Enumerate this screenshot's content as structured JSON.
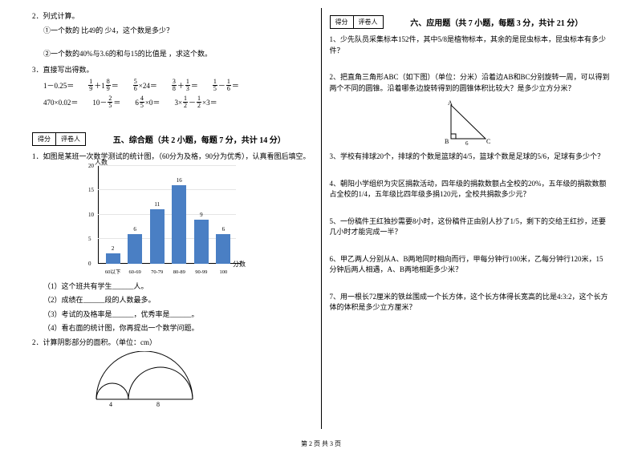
{
  "left": {
    "q2": {
      "title": "2．列式计算。",
      "a": "①一个数的 比49的 少4，这个数是多少？",
      "b": "②一个数的40%与3.6的和与15的比值是 ，求这个数。"
    },
    "q3": {
      "title": "3．直接写出得数。",
      "row1": {
        "e1_l": "1－0.25＝",
        "e2_pre": "",
        "e2_f1n": "1",
        "e2_f1d": "9",
        "e2_mid": "＋1",
        "e2_f2n": "8",
        "e2_f2d": "9",
        "e2_post": "＝",
        "e3_f1n": "5",
        "e3_f1d": "6",
        "e3_post": "×24＝",
        "e4_f1n": "3",
        "e4_f1d": "8",
        "e4_mid": "＋",
        "e4_f2n": "1",
        "e4_f2d": "3",
        "e4_post": "＝",
        "e5_f1n": "1",
        "e5_f1d": "5",
        "e5_mid": "－",
        "e5_f2n": "1",
        "e5_f2d": "6",
        "e5_post": "＝"
      },
      "row2": {
        "e1_l": "470×0.02＝",
        "e2_pre": "10－",
        "e2_f1n": "2",
        "e2_f1d": "5",
        "e2_post": "＝",
        "e3_pre": "6",
        "e3_f1n": "4",
        "e3_f1d": "5",
        "e3_post": "×0＝",
        "e4_pre": "3×",
        "e4_f1n": "1",
        "e4_f1d": "2",
        "e4_mid": "－",
        "e4_f2n": "1",
        "e4_f2d": "2",
        "e4_post": "×3＝"
      }
    },
    "score": {
      "a": "得分",
      "b": "评卷人"
    },
    "sec5": "五、综合题（共 2 小题，每题 7 分，共计 14 分）",
    "p1": "1．如图是某班一次数学测试的统计图，（60分为及格，90分为优秀），认真看图后填空。",
    "chart": {
      "ylabel": "人数",
      "xlabel": "分数",
      "ymax": 20,
      "ystep": 5,
      "categories": [
        "60以下",
        "60-69",
        "70-79",
        "80-89",
        "90-99",
        "100"
      ],
      "values": [
        2,
        6,
        11,
        16,
        9,
        6
      ],
      "bar_color": "#4a7fc4",
      "ytick_color": "#e5e5e5"
    },
    "sub": {
      "s1": "（1）这个班共有学生______人。",
      "s2": "（2）成绩在______段的人数最多。",
      "s3": "（3）考试的及格率是______，优秀率是______。",
      "s4": "（4）看右面的统计图，你再提出一个数学问题。"
    },
    "p2": "2．计算阴影部分的面积。（单位：cm）",
    "arc": {
      "a": "4",
      "b": "8"
    }
  },
  "right": {
    "score": {
      "a": "得分",
      "b": "评卷人"
    },
    "sec6": "六、应用题（共 7 小题，每题 3 分，共计 21 分）",
    "q1": "1、少先队员采集标本152件，其中5/8是植物标本，其余的是昆虫标本，昆虫标本有多少件？",
    "q2": "2、把直角三角形ABC（如下图）（单位：分米）沿着边AB和BC分别旋转一周，可以得到两个不同的圆锥。沿着哪条边旋转得到的圆锥体积比较大？是多少立方分米？",
    "tri": {
      "A": "A",
      "B": "B",
      "C": "C",
      "bc": "6"
    },
    "q3": "3、学校有排球20个，排球的个数是篮球的4/5，篮球个数是足球的5/6，足球有多少个？",
    "q4": "4、朝阳小学组织为灾区捐款活动，四年级的捐款数额占全校的20%，五年级的捐款数额占全校的1/4，五年级比四年级多捐120元，全校共捐款多少元？",
    "q5": "5、一份稿件王红独抄需要8小时，这份稿件正由别人抄了1/5，剩下的交给王红抄，还要几小时才能完成一半？",
    "q6": "6、甲乙两人分别从A、B两地同时相向而行，甲每分钟行100米，乙每分钟行120米，15分钟后两人相遇，A、B两地相距多少米？",
    "q7": "7、用一根长72厘米的铁丝围成一个长方体，这个长方体得长宽高的比是4:3:2，这个长方体的体积是多少立方厘米？"
  },
  "footer": "第 2 页 共 3 页"
}
